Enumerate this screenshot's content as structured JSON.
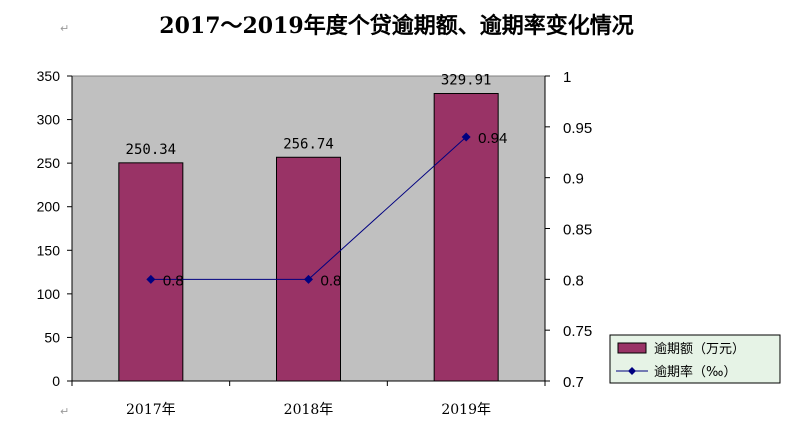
{
  "chart_data": {
    "type": "bar+line",
    "title": "2017～2019年度个贷逾期额、逾期率变化情况",
    "categories": [
      "2017年",
      "2018年",
      "2019年"
    ],
    "series": [
      {
        "name": "逾期额（万元）",
        "type": "bar",
        "axis": "left",
        "color": "#993366",
        "values": [
          250.34,
          256.74,
          329.91
        ],
        "labels": [
          "250.34",
          "256.74",
          "329.91"
        ]
      },
      {
        "name": "逾期率（‰）",
        "type": "line",
        "axis": "right",
        "color": "#000080",
        "values": [
          0.8,
          0.8,
          0.94
        ],
        "labels": [
          "0.8",
          "0.8",
          "0.94"
        ]
      }
    ],
    "y_left": {
      "min": 0,
      "max": 350,
      "ticks": [
        "0",
        "50",
        "100",
        "150",
        "200",
        "250",
        "300",
        "350"
      ]
    },
    "y_right": {
      "min": 0.7,
      "max": 1,
      "ticks": [
        "0.7",
        "0.75",
        "0.8",
        "0.85",
        "0.9",
        "0.95",
        "1"
      ]
    },
    "plot_background": "#c0c0c0",
    "legend_background": "#e6f3e6",
    "legend_position": "bottom-right"
  }
}
